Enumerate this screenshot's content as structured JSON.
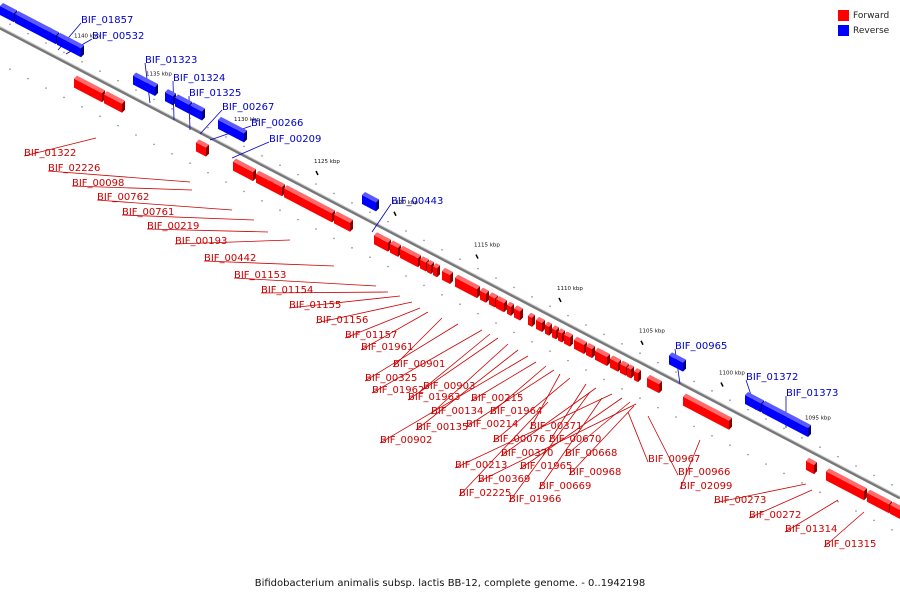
{
  "legend": [
    {
      "label": "Forward",
      "color": "#ff0000"
    },
    {
      "label": "Reverse",
      "color": "#0000ff"
    }
  ],
  "colors": {
    "forward": "#ff0000",
    "reverse": "#0000ff",
    "track": "#999999"
  },
  "caption": "Bifidobacterium animalis subsp. lactis BB-12, complete genome. - 0..1942198",
  "ticks": [
    "1140 kbp",
    "1135 kbp",
    "1130 kbp",
    "1125 kbp",
    "1120 kbp",
    "1115 kbp",
    "1110 kbp",
    "1105 kbp",
    "1100 kbp",
    "1095 kbp"
  ],
  "genes_reverse": [
    "BIF_01857",
    "BIF_00532",
    "BIF_01323",
    "BIF_01324",
    "BIF_01325",
    "BIF_00267",
    "BIF_00266",
    "BIF_00209",
    "BIF_00443",
    "BIF_00965",
    "BIF_01372",
    "BIF_01373"
  ],
  "genes_forward": [
    "BIF_01322",
    "BIF_02226",
    "BIF_00098",
    "BIF_00762",
    "BIF_00761",
    "BIF_00219",
    "BIF_00193",
    "BIF_00442",
    "BIF_01153",
    "BIF_01154",
    "BIF_01155",
    "BIF_01156",
    "BIF_01157",
    "BIF_01961",
    "BIF_00901",
    "BIF_00325",
    "BIF_01962",
    "BIF_00903",
    "BIF_01963",
    "BIF_00134",
    "BIF_00135",
    "BIF_00902",
    "BIF_00215",
    "BIF_01964",
    "BIF_00214",
    "BIF_00371",
    "BIF_00076",
    "BIF_00670",
    "BIF_00370",
    "BIF_00213",
    "BIF_01965",
    "BIF_00668",
    "BIF_00369",
    "BIF_00968",
    "BIF_02225",
    "BIF_00669",
    "BIF_01966",
    "BIF_00967",
    "BIF_00966",
    "BIF_02099",
    "BIF_00273",
    "BIF_00272",
    "BIF_01314",
    "BIF_01315"
  ]
}
